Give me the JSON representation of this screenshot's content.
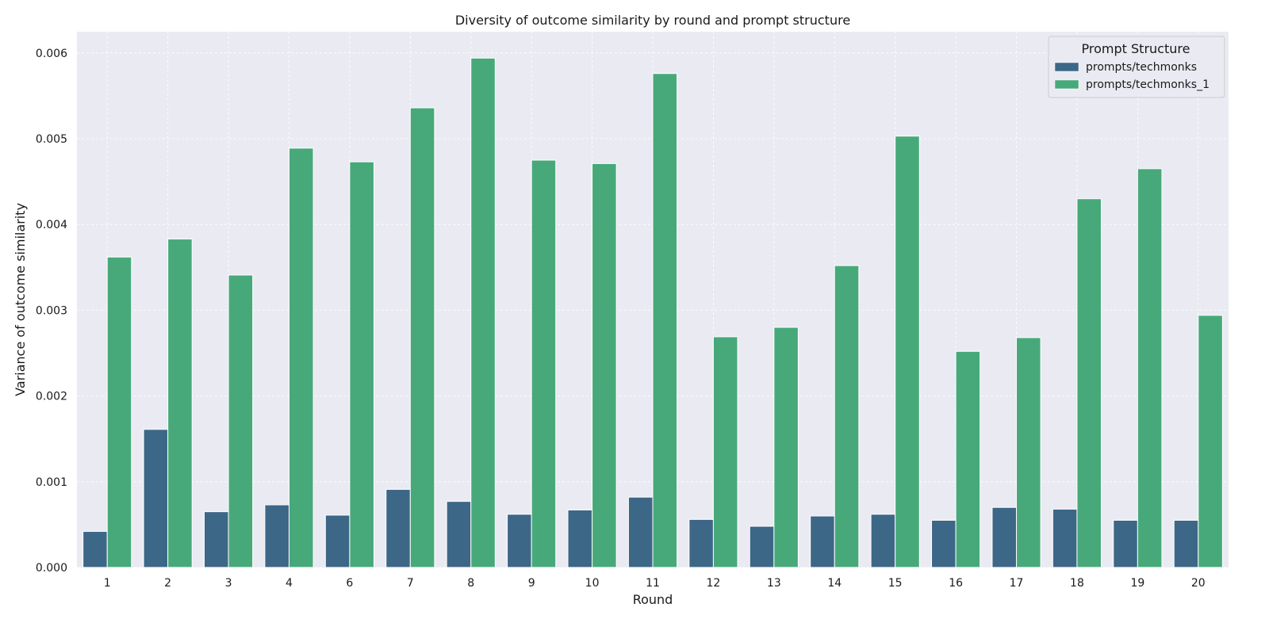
{
  "chart_data": {
    "type": "bar",
    "title": "Diversity of outcome similarity by round and prompt structure",
    "xlabel": "Round",
    "ylabel": "Variance of outcome similarity",
    "ylim": [
      0,
      0.00625
    ],
    "yticks": [
      "0.000",
      "0.001",
      "0.002",
      "0.003",
      "0.004",
      "0.005",
      "0.006"
    ],
    "grid": true,
    "legend": {
      "title": "Prompt Structure",
      "placement": "top-right"
    },
    "categories": [
      "1",
      "2",
      "3",
      "4",
      "6",
      "7",
      "8",
      "9",
      "10",
      "11",
      "12",
      "13",
      "14",
      "15",
      "16",
      "17",
      "18",
      "19",
      "20"
    ],
    "series": [
      {
        "name": "prompts/techmonks",
        "color": "#3d6787",
        "values": [
          0.00042,
          0.00161,
          0.00065,
          0.00073,
          0.00061,
          0.00091,
          0.00077,
          0.00062,
          0.00067,
          0.00082,
          0.00056,
          0.00048,
          0.0006,
          0.00062,
          0.00055,
          0.0007,
          0.00068,
          0.00055,
          0.00055
        ]
      },
      {
        "name": "prompts/techmonks_1",
        "color": "#47a97a",
        "values": [
          0.00362,
          0.00383,
          0.00341,
          0.00489,
          0.00473,
          0.00536,
          0.00594,
          0.00475,
          0.00471,
          0.00576,
          0.00269,
          0.0028,
          0.00352,
          0.00503,
          0.00252,
          0.00268,
          0.0043,
          0.00465,
          0.00294
        ]
      }
    ]
  }
}
